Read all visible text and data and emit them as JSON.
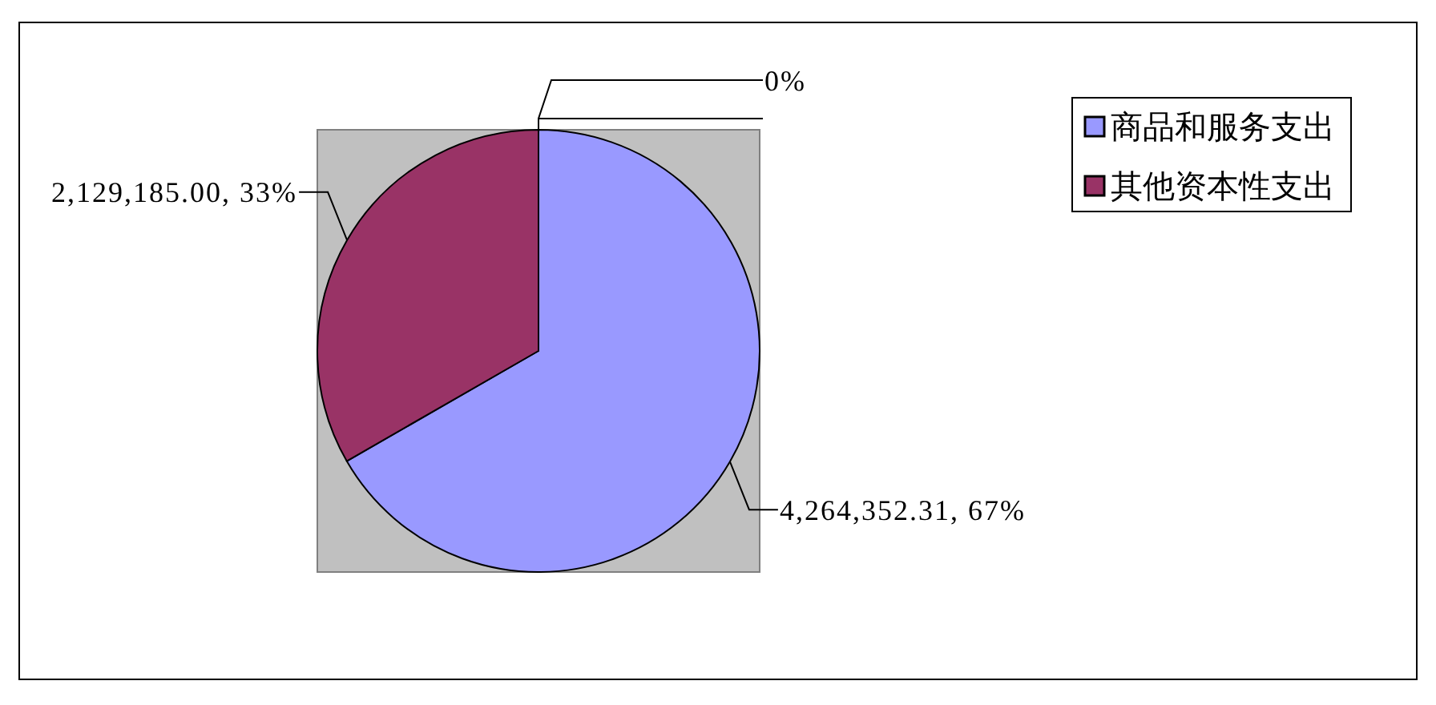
{
  "chart_data": {
    "type": "pie",
    "categories": [
      "商品和服务支出",
      "其他资本性支出",
      null
    ],
    "values": [
      4264352.31,
      2129185.0,
      0
    ],
    "colors": [
      "#9999ff",
      "#993366",
      "#ffffcc"
    ],
    "value_labels": [
      "4,264,352.31, 67%",
      "2,129,185.00, 33%",
      "0%"
    ],
    "legend": "top right"
  }
}
